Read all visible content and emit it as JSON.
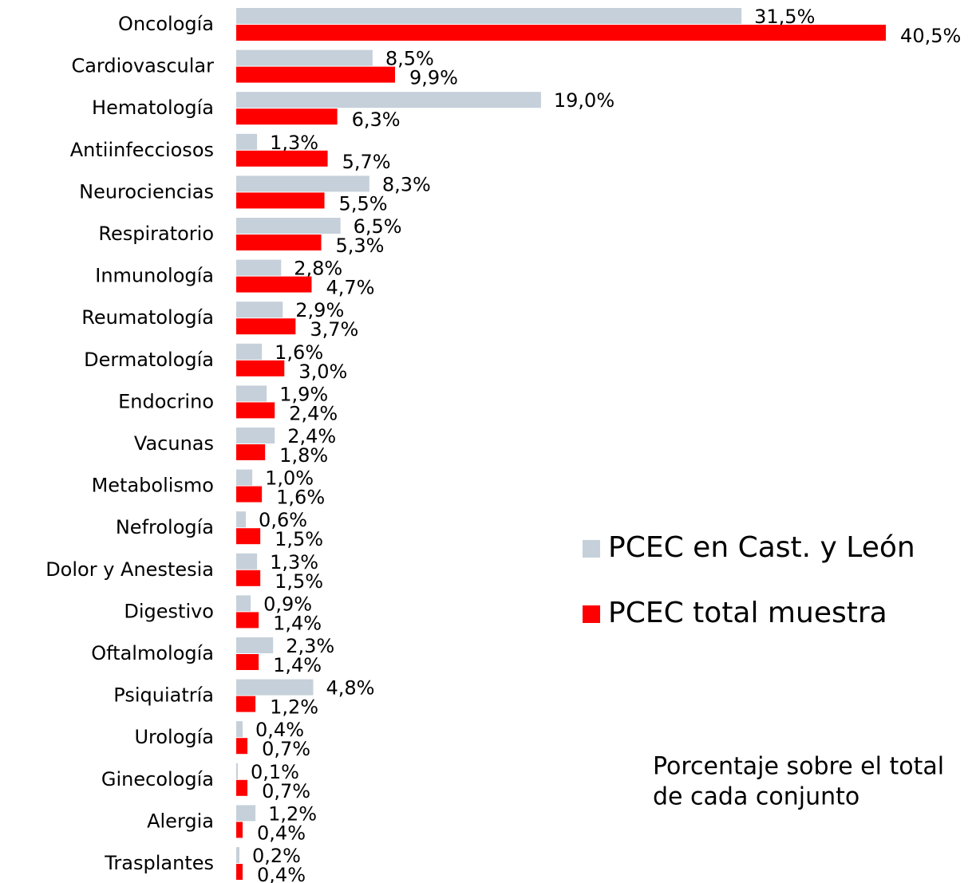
{
  "chart_data": {
    "type": "hbar",
    "categories": [
      "Oncología",
      "Cardiovascular",
      "Hematología",
      "Antiinfecciosos",
      "Neurociencias",
      "Respiratorio",
      "Inmunología",
      "Reumatología",
      "Dermatología",
      "Endocrino",
      "Vacunas",
      "Metabolismo",
      "Nefrología",
      "Dolor y Anestesia",
      "Digestivo",
      "Oftalmología",
      "Psiquiatría",
      "Urología",
      "Ginecología",
      "Alergia",
      "Trasplantes"
    ],
    "series": [
      {
        "name": "PCEC en Cast. y León",
        "color": "#c5d0da",
        "values": [
          31.5,
          8.5,
          19.0,
          1.3,
          8.3,
          6.5,
          2.8,
          2.9,
          1.6,
          1.9,
          2.4,
          1.0,
          0.6,
          1.3,
          0.9,
          2.3,
          4.8,
          0.4,
          0.1,
          1.2,
          0.2
        ],
        "value_labels": [
          "31,5%",
          "8,5%",
          "19,0%",
          "1,3%",
          "8,3%",
          "6,5%",
          "2,8%",
          "2,9%",
          "1,6%",
          "1,9%",
          "2,4%",
          "1,0%",
          "0,6%",
          "1,3%",
          "0,9%",
          "2,3%",
          "4,8%",
          "0,4%",
          "0,1%",
          "1,2%",
          "0,2%"
        ]
      },
      {
        "name": "PCEC total muestra",
        "color": "#ff0000",
        "values": [
          40.5,
          9.9,
          6.3,
          5.7,
          5.5,
          5.3,
          4.7,
          3.7,
          3.0,
          2.4,
          1.8,
          1.6,
          1.5,
          1.5,
          1.4,
          1.4,
          1.2,
          0.7,
          0.7,
          0.4,
          0.4
        ],
        "value_labels": [
          "40,5%",
          "9,9%",
          "6,3%",
          "5,7%",
          "5,5%",
          "5,3%",
          "4,7%",
          "3,7%",
          "3,0%",
          "2,4%",
          "1,8%",
          "1,6%",
          "1,5%",
          "1,5%",
          "1,4%",
          "1,4%",
          "1,2%",
          "0,7%",
          "0,7%",
          "0,4%",
          "0,4%"
        ]
      }
    ],
    "annotation": [
      "Porcentaje sobre el total",
      "de cada conjunto"
    ]
  }
}
